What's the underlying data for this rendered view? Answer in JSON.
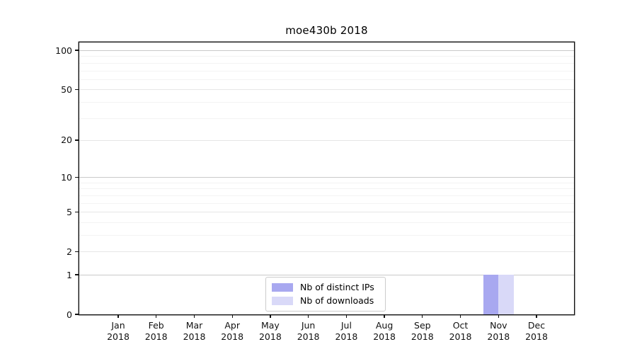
{
  "chart_data": {
    "type": "bar",
    "title": "moe430b 2018",
    "x": {
      "categories": [
        "Jan",
        "Feb",
        "Mar",
        "Apr",
        "May",
        "Jun",
        "Jul",
        "Aug",
        "Sep",
        "Oct",
        "Nov",
        "Dec"
      ],
      "year_label": "2018"
    },
    "series": [
      {
        "name": "Nb of distinct IPs",
        "color": "#a8a8f0",
        "values": [
          0,
          0,
          0,
          0,
          0,
          0,
          0,
          0,
          0,
          0,
          1,
          0
        ]
      },
      {
        "name": "Nb of downloads",
        "color": "#d9d9f8",
        "values": [
          0,
          0,
          0,
          0,
          0,
          0,
          0,
          0,
          0,
          0,
          1,
          0
        ]
      }
    ],
    "y_axis": {
      "scale": "log1p",
      "tick_values": [
        0,
        1,
        2,
        5,
        10,
        20,
        50,
        100
      ],
      "decade_values": [
        1,
        10,
        100
      ],
      "minor_grid_values": [
        3,
        4,
        6,
        7,
        8,
        9,
        30,
        40,
        60,
        70,
        80,
        90
      ],
      "ylim": [
        0,
        115
      ]
    },
    "legend": {
      "position": "bottom-center"
    },
    "grid": true,
    "background": "#ffffff"
  }
}
